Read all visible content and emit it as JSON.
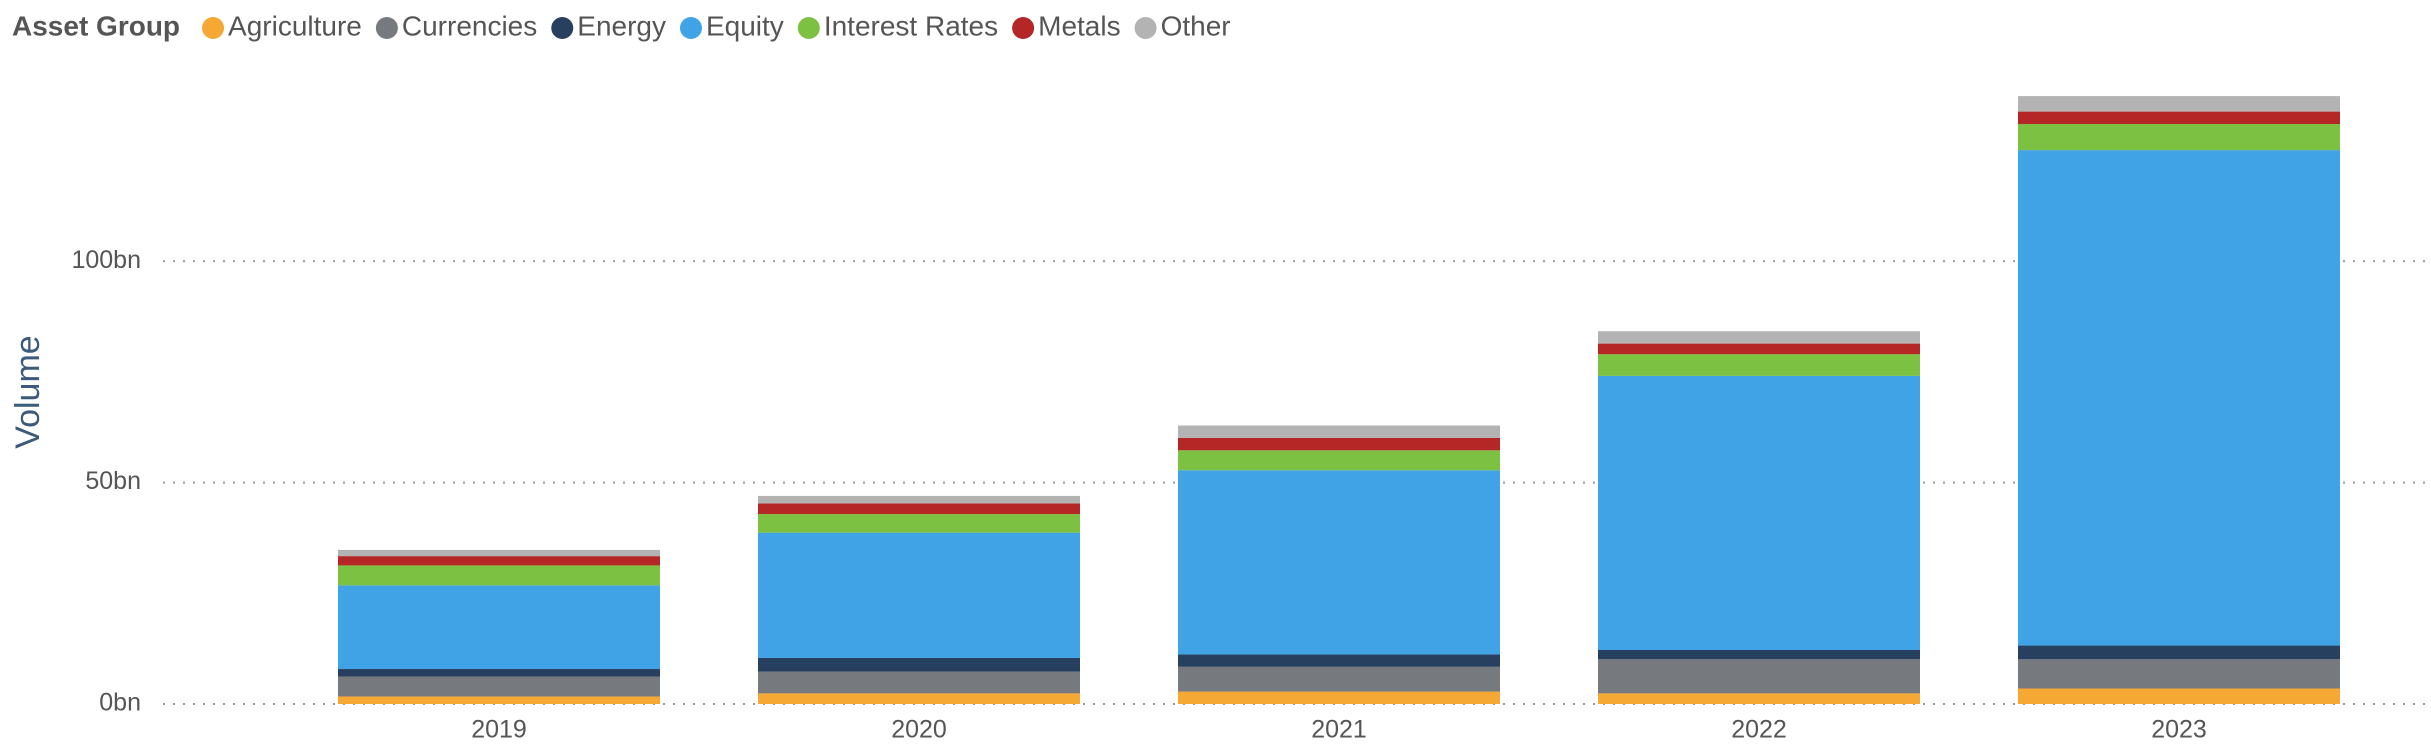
{
  "chart_data": {
    "type": "stacked_bar",
    "legend_title": "Asset Group",
    "y_label": "Volume",
    "categories": [
      "2019",
      "2020",
      "2021",
      "2022",
      "2023"
    ],
    "series": [
      {
        "name": "Agriculture",
        "color": "#f5a833",
        "values": [
          1.7,
          2.4,
          2.8,
          2.4,
          3.5
        ]
      },
      {
        "name": "Currencies",
        "color": "#76797d",
        "values": [
          4.5,
          4.9,
          5.6,
          7.7,
          6.6
        ]
      },
      {
        "name": "Energy",
        "color": "#28405f",
        "values": [
          1.7,
          3.1,
          2.8,
          2.1,
          3.1
        ]
      },
      {
        "name": "Equity",
        "color": "#3fa3e6",
        "values": [
          18.9,
          28.3,
          41.6,
          61.9,
          111.9
        ]
      },
      {
        "name": "Interest Rates",
        "color": "#7dc142",
        "values": [
          4.5,
          4.2,
          4.5,
          4.9,
          5.9
        ]
      },
      {
        "name": "Metals",
        "color": "#b52626",
        "values": [
          2.1,
          2.4,
          2.8,
          2.4,
          2.8
        ]
      },
      {
        "name": "Other",
        "color": "#b3b3b3",
        "values": [
          1.4,
          1.7,
          2.8,
          2.8,
          3.5
        ]
      }
    ],
    "ylim": [
      0,
      145
    ],
    "yticks": [
      {
        "value": 0,
        "label": "0bn"
      },
      {
        "value": 50,
        "label": "50bn"
      },
      {
        "value": 100,
        "label": "100bn"
      }
    ],
    "grid": true
  }
}
